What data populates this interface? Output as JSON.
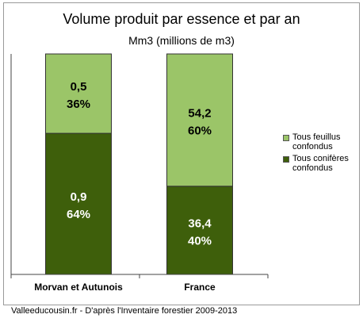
{
  "title": "Volume produit par essence et par an",
  "subtitle": "Mm3 (millions de m3)",
  "source": "Valleeducousin.fr - D'après l'Inventaire forestier 2009-2013",
  "colors": {
    "feuillus": "#9bc568",
    "coniferes": "#3e5f0b",
    "frame": "#9a9a9a"
  },
  "chart_data": {
    "type": "bar",
    "stacked": true,
    "normalized": "percent",
    "categories": [
      "Morvan et Autunois",
      "France"
    ],
    "series": [
      {
        "name": "Tous conifères confondus",
        "values": [
          0.9,
          36.4
        ],
        "percent": [
          64,
          40
        ],
        "labels": [
          "0,9",
          "36,4"
        ],
        "pct_labels": [
          "64%",
          "40%"
        ]
      },
      {
        "name": "Tous feuillus confondus",
        "values": [
          0.5,
          54.2
        ],
        "percent": [
          36,
          60
        ],
        "labels": [
          "0,5",
          "54,2"
        ],
        "pct_labels": [
          "36%",
          "60%"
        ]
      }
    ],
    "legend": [
      "Tous feuillus confondus",
      "Tous conifères confondus"
    ],
    "legend_position": "right",
    "ylim": [
      0,
      100
    ],
    "grid": false
  }
}
